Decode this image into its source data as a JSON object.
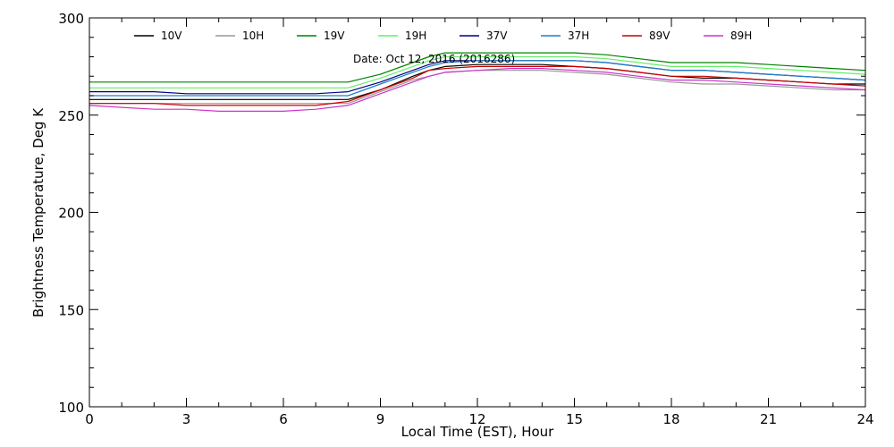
{
  "chart_data": {
    "type": "line",
    "title": "",
    "annotation": "Date: Oct 12, 2016 (2016286)",
    "xlabel": "Local Time (EST), Hour",
    "ylabel": "Brightness Temperature, Deg K",
    "xlim": [
      0,
      24
    ],
    "ylim": [
      100,
      300
    ],
    "xticks": [
      0,
      3,
      6,
      9,
      12,
      15,
      18,
      21,
      24
    ],
    "yticks": [
      100,
      150,
      200,
      250,
      300
    ],
    "grid": false,
    "legend_position": "top",
    "x": [
      0,
      1,
      2,
      3,
      4,
      5,
      6,
      7,
      8,
      9,
      10,
      10.5,
      11,
      12,
      13,
      14,
      15,
      16,
      17,
      18,
      19,
      20,
      21,
      22,
      23,
      24
    ],
    "series": [
      {
        "name": "10V",
        "color": "#000000",
        "values": [
          258,
          258,
          258,
          258,
          258,
          258,
          258,
          258,
          258,
          263,
          270,
          273,
          275,
          276,
          276,
          276,
          275,
          274,
          272,
          270,
          269,
          269,
          268,
          267,
          266,
          266
        ]
      },
      {
        "name": "10H",
        "color": "#999999",
        "values": [
          256,
          256,
          256,
          256,
          256,
          256,
          256,
          256,
          256,
          262,
          268,
          270,
          272,
          273,
          273,
          273,
          272,
          271,
          269,
          267,
          266,
          266,
          265,
          264,
          263,
          263
        ]
      },
      {
        "name": "19V",
        "color": "#008000",
        "values": [
          267,
          267,
          267,
          267,
          267,
          267,
          267,
          267,
          267,
          271,
          277,
          280,
          282,
          282,
          282,
          282,
          282,
          281,
          279,
          277,
          277,
          277,
          276,
          275,
          274,
          273
        ]
      },
      {
        "name": "19H",
        "color": "#66ee66",
        "values": [
          264,
          264,
          264,
          264,
          264,
          264,
          264,
          264,
          264,
          269,
          275,
          278,
          280,
          280,
          280,
          280,
          280,
          279,
          277,
          275,
          275,
          275,
          274,
          273,
          272,
          271
        ]
      },
      {
        "name": "37V",
        "color": "#000080",
        "values": [
          262,
          262,
          262,
          261,
          261,
          261,
          261,
          261,
          262,
          267,
          273,
          276,
          278,
          278,
          278,
          278,
          278,
          277,
          275,
          273,
          273,
          272,
          271,
          270,
          269,
          268
        ]
      },
      {
        "name": "37H",
        "color": "#1e7fc8",
        "values": [
          260,
          260,
          260,
          260,
          260,
          260,
          260,
          260,
          260,
          266,
          272,
          275,
          277,
          278,
          278,
          278,
          278,
          277,
          275,
          273,
          273,
          272,
          271,
          270,
          269,
          268
        ]
      },
      {
        "name": "89V",
        "color": "#cc0000",
        "values": [
          256,
          256,
          256,
          255,
          255,
          255,
          255,
          255,
          257,
          263,
          269,
          273,
          274,
          275,
          275,
          275,
          275,
          274,
          272,
          270,
          270,
          269,
          268,
          267,
          266,
          265
        ]
      },
      {
        "name": "89H",
        "color": "#cc33cc",
        "values": [
          255,
          254,
          253,
          253,
          252,
          252,
          252,
          253,
          255,
          261,
          267,
          270,
          272,
          273,
          274,
          274,
          273,
          272,
          270,
          268,
          268,
          267,
          266,
          265,
          264,
          263
        ]
      }
    ]
  }
}
